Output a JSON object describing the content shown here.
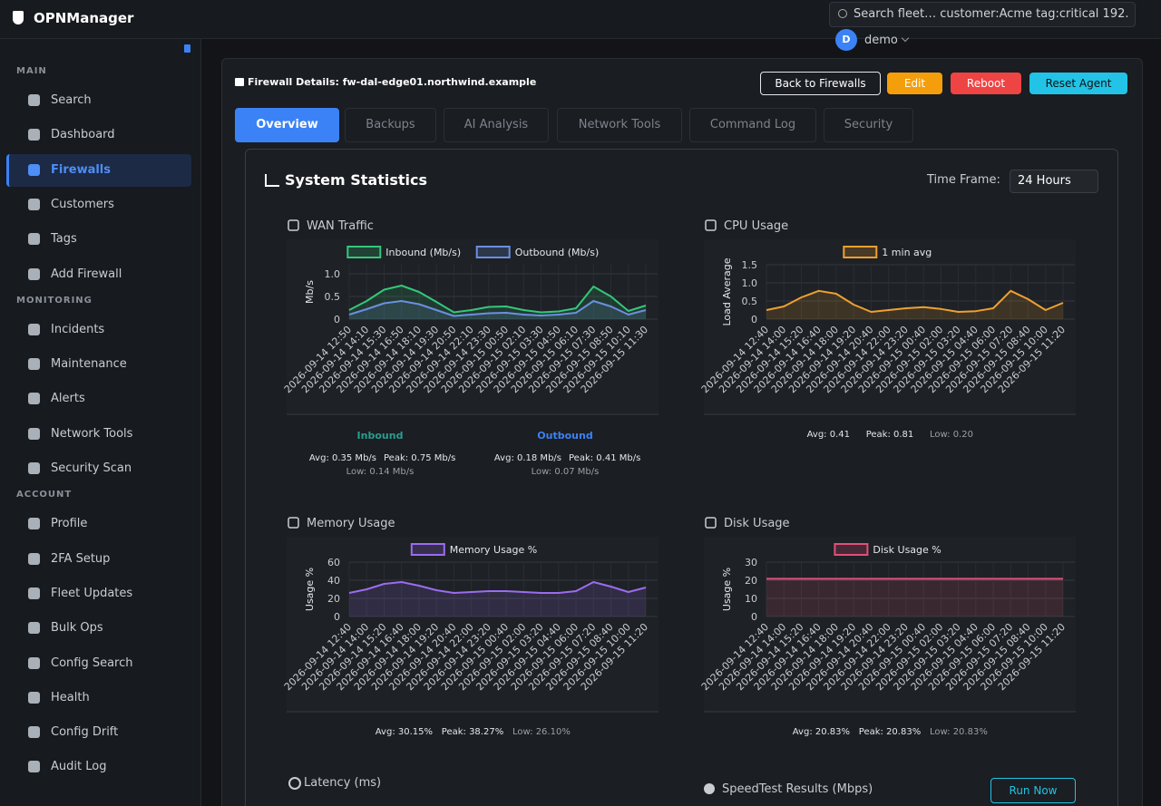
{
  "app": {
    "brand": "OPNManager",
    "search_placeholder": "Search fleet…  customer:Acme  tag:critical  192.",
    "user_initial": "D",
    "user_name": "demo"
  },
  "sidebar": [
    {
      "title": "MAIN",
      "items": [
        "Search",
        "Dashboard",
        "Firewalls",
        "Customers",
        "Tags",
        "Add Firewall"
      ]
    },
    {
      "title": "MONITORING",
      "items": [
        "Incidents",
        "Maintenance",
        "Alerts",
        "Network Tools",
        "Security Scan"
      ]
    },
    {
      "title": "ACCOUNT",
      "items": [
        "Profile",
        "2FA Setup",
        "Fleet Updates",
        "Bulk Ops",
        "Config Search",
        "Health",
        "Config Drift",
        "Audit Log"
      ]
    }
  ],
  "panel": {
    "title": "Firewall Details: fw-dal-edge01.northwind.example",
    "buttons": [
      "Back to Firewalls",
      "Edit",
      "Reboot",
      "Reset Agent"
    ],
    "tabs": [
      "Overview",
      "Backups",
      "AI Analysis",
      "Network Tools",
      "Command Log",
      "Security"
    ]
  },
  "stats": {
    "title": "System Statistics",
    "timeframe_label": "Time Frame:",
    "timeframe": "24 Hours",
    "latency_title": "Latency (ms)",
    "speedtest_title": "SpeedTest Results (Mbps)",
    "run_now": "Run Now"
  },
  "chart_data": [
    {
      "type": "line",
      "title": "WAN Traffic",
      "y_label": "Mb/s",
      "ylim": [
        0,
        1.2
      ],
      "yticks": [
        0,
        0.5,
        {
          "value": 1,
          "label": "1.0"
        }
      ],
      "grid": true,
      "categories": [
        "2026-09-14 12:50",
        "2026-09-14 14:10",
        "2026-09-14 15:30",
        "2026-09-14 16:50",
        "2026-09-14 18:10",
        "2026-09-14 19:30",
        "2026-09-14 20:50",
        "2026-09-14 22:10",
        "2026-09-14 23:30",
        "2026-09-15 00:50",
        "2026-09-15 02:10",
        "2026-09-15 03:30",
        "2026-09-15 04:50",
        "2026-09-15 06:10",
        "2026-09-15 07:30",
        "2026-09-15 08:50",
        "2026-09-15 10:10",
        "2026-09-15 11:30"
      ],
      "series": [
        {
          "name": "Inbound (Mb/s)",
          "color": "#34c77b",
          "values": [
            0.2,
            0.4,
            0.65,
            0.74,
            0.6,
            0.38,
            0.15,
            0.2,
            0.27,
            0.28,
            0.2,
            0.15,
            0.17,
            0.24,
            0.72,
            0.5,
            0.18,
            0.3
          ]
        },
        {
          "name": "Outbound (Mb/s)",
          "color": "#6b8fe0",
          "values": [
            0.1,
            0.22,
            0.35,
            0.4,
            0.33,
            0.2,
            0.07,
            0.1,
            0.13,
            0.14,
            0.1,
            0.08,
            0.1,
            0.14,
            0.4,
            0.28,
            0.1,
            0.2
          ]
        }
      ],
      "summary": [
        {
          "heading": "Inbound",
          "color": "#2a9d8f",
          "avg": "Avg: 0.35 Mb/s",
          "peak": "Peak: 0.75 Mb/s",
          "low": "Low: 0.14 Mb/s"
        },
        {
          "heading": "Outbound",
          "color": "#3b82f6",
          "avg": "Avg: 0.18 Mb/s",
          "peak": "Peak: 0.41 Mb/s",
          "low": "Low: 0.07 Mb/s"
        }
      ]
    },
    {
      "type": "line",
      "title": "CPU Usage",
      "y_label": "Load Average",
      "ylim": [
        0,
        1.5
      ],
      "yticks": [
        0,
        0.5,
        {
          "value": 1,
          "label": "1.0"
        },
        1.5
      ],
      "grid": true,
      "categories": [
        "2026-09-14 12:40",
        "2026-09-14 14:00",
        "2026-09-14 15:20",
        "2026-09-14 16:40",
        "2026-09-14 18:00",
        "2026-09-14 19:20",
        "2026-09-14 20:40",
        "2026-09-14 22:00",
        "2026-09-14 23:20",
        "2026-09-15 00:40",
        "2026-09-15 02:00",
        "2026-09-15 03:20",
        "2026-09-15 04:40",
        "2026-09-15 06:00",
        "2026-09-15 07:20",
        "2026-09-15 08:40",
        "2026-09-15 10:00",
        "2026-09-15 11:20"
      ],
      "series": [
        {
          "name": "1 min avg",
          "color": "#f0a030",
          "values": [
            0.25,
            0.35,
            0.6,
            0.78,
            0.7,
            0.4,
            0.2,
            0.25,
            0.3,
            0.33,
            0.28,
            0.2,
            0.22,
            0.3,
            0.78,
            0.55,
            0.25,
            0.45
          ]
        }
      ],
      "summary": [
        {
          "avg": "Avg: 0.41",
          "peak": "Peak: 0.81",
          "low": "Low: 0.20"
        }
      ]
    },
    {
      "type": "line",
      "title": "Memory Usage",
      "y_label": "Usage %",
      "ylim": [
        0,
        60
      ],
      "yticks": [
        0,
        20,
        40,
        60
      ],
      "grid": true,
      "categories": [
        "2026-09-14 12:40",
        "2026-09-14 14:00",
        "2026-09-14 15:20",
        "2026-09-14 16:40",
        "2026-09-14 18:00",
        "2026-09-14 19:20",
        "2026-09-14 20:40",
        "2026-09-14 22:00",
        "2026-09-14 23:20",
        "2026-09-15 00:40",
        "2026-09-15 02:00",
        "2026-09-15 03:20",
        "2026-09-15 04:40",
        "2026-09-15 06:00",
        "2026-09-15 07:20",
        "2026-09-15 08:40",
        "2026-09-15 10:00",
        "2026-09-15 11:20"
      ],
      "series": [
        {
          "name": "Memory Usage %",
          "color": "#9b6cf0",
          "values": [
            26,
            30,
            36,
            38,
            34,
            29,
            26,
            27,
            28,
            28,
            27,
            26,
            26,
            28,
            38,
            33,
            27,
            32
          ]
        }
      ],
      "summary": [
        {
          "avg": "Avg: 30.15%",
          "peak": "Peak: 38.27%",
          "low": "Low: 26.10%"
        }
      ]
    },
    {
      "type": "line",
      "title": "Disk Usage",
      "y_label": "Usage %",
      "ylim": [
        0,
        30
      ],
      "yticks": [
        0,
        10,
        20,
        30
      ],
      "grid": true,
      "categories": [
        "2026-09-14 12:40",
        "2026-09-14 14:00",
        "2026-09-14 15:20",
        "2026-09-14 16:40",
        "2026-09-14 18:00",
        "2026-09-14 19:20",
        "2026-09-14 20:40",
        "2026-09-14 22:00",
        "2026-09-14 23:20",
        "2026-09-15 00:40",
        "2026-09-15 02:00",
        "2026-09-15 03:20",
        "2026-09-15 04:40",
        "2026-09-15 06:00",
        "2026-09-15 07:20",
        "2026-09-15 08:40",
        "2026-09-15 10:00",
        "2026-09-15 11:20"
      ],
      "series": [
        {
          "name": "Disk Usage %",
          "color": "#e0507a",
          "values": [
            20.83,
            20.83,
            20.83,
            20.83,
            20.83,
            20.83,
            20.83,
            20.83,
            20.83,
            20.83,
            20.83,
            20.83,
            20.83,
            20.83,
            20.83,
            20.83,
            20.83,
            20.83
          ]
        }
      ],
      "summary": [
        {
          "avg": "Avg: 20.83%",
          "peak": "Peak: 20.83%",
          "low": "Low: 20.83%"
        }
      ]
    }
  ]
}
